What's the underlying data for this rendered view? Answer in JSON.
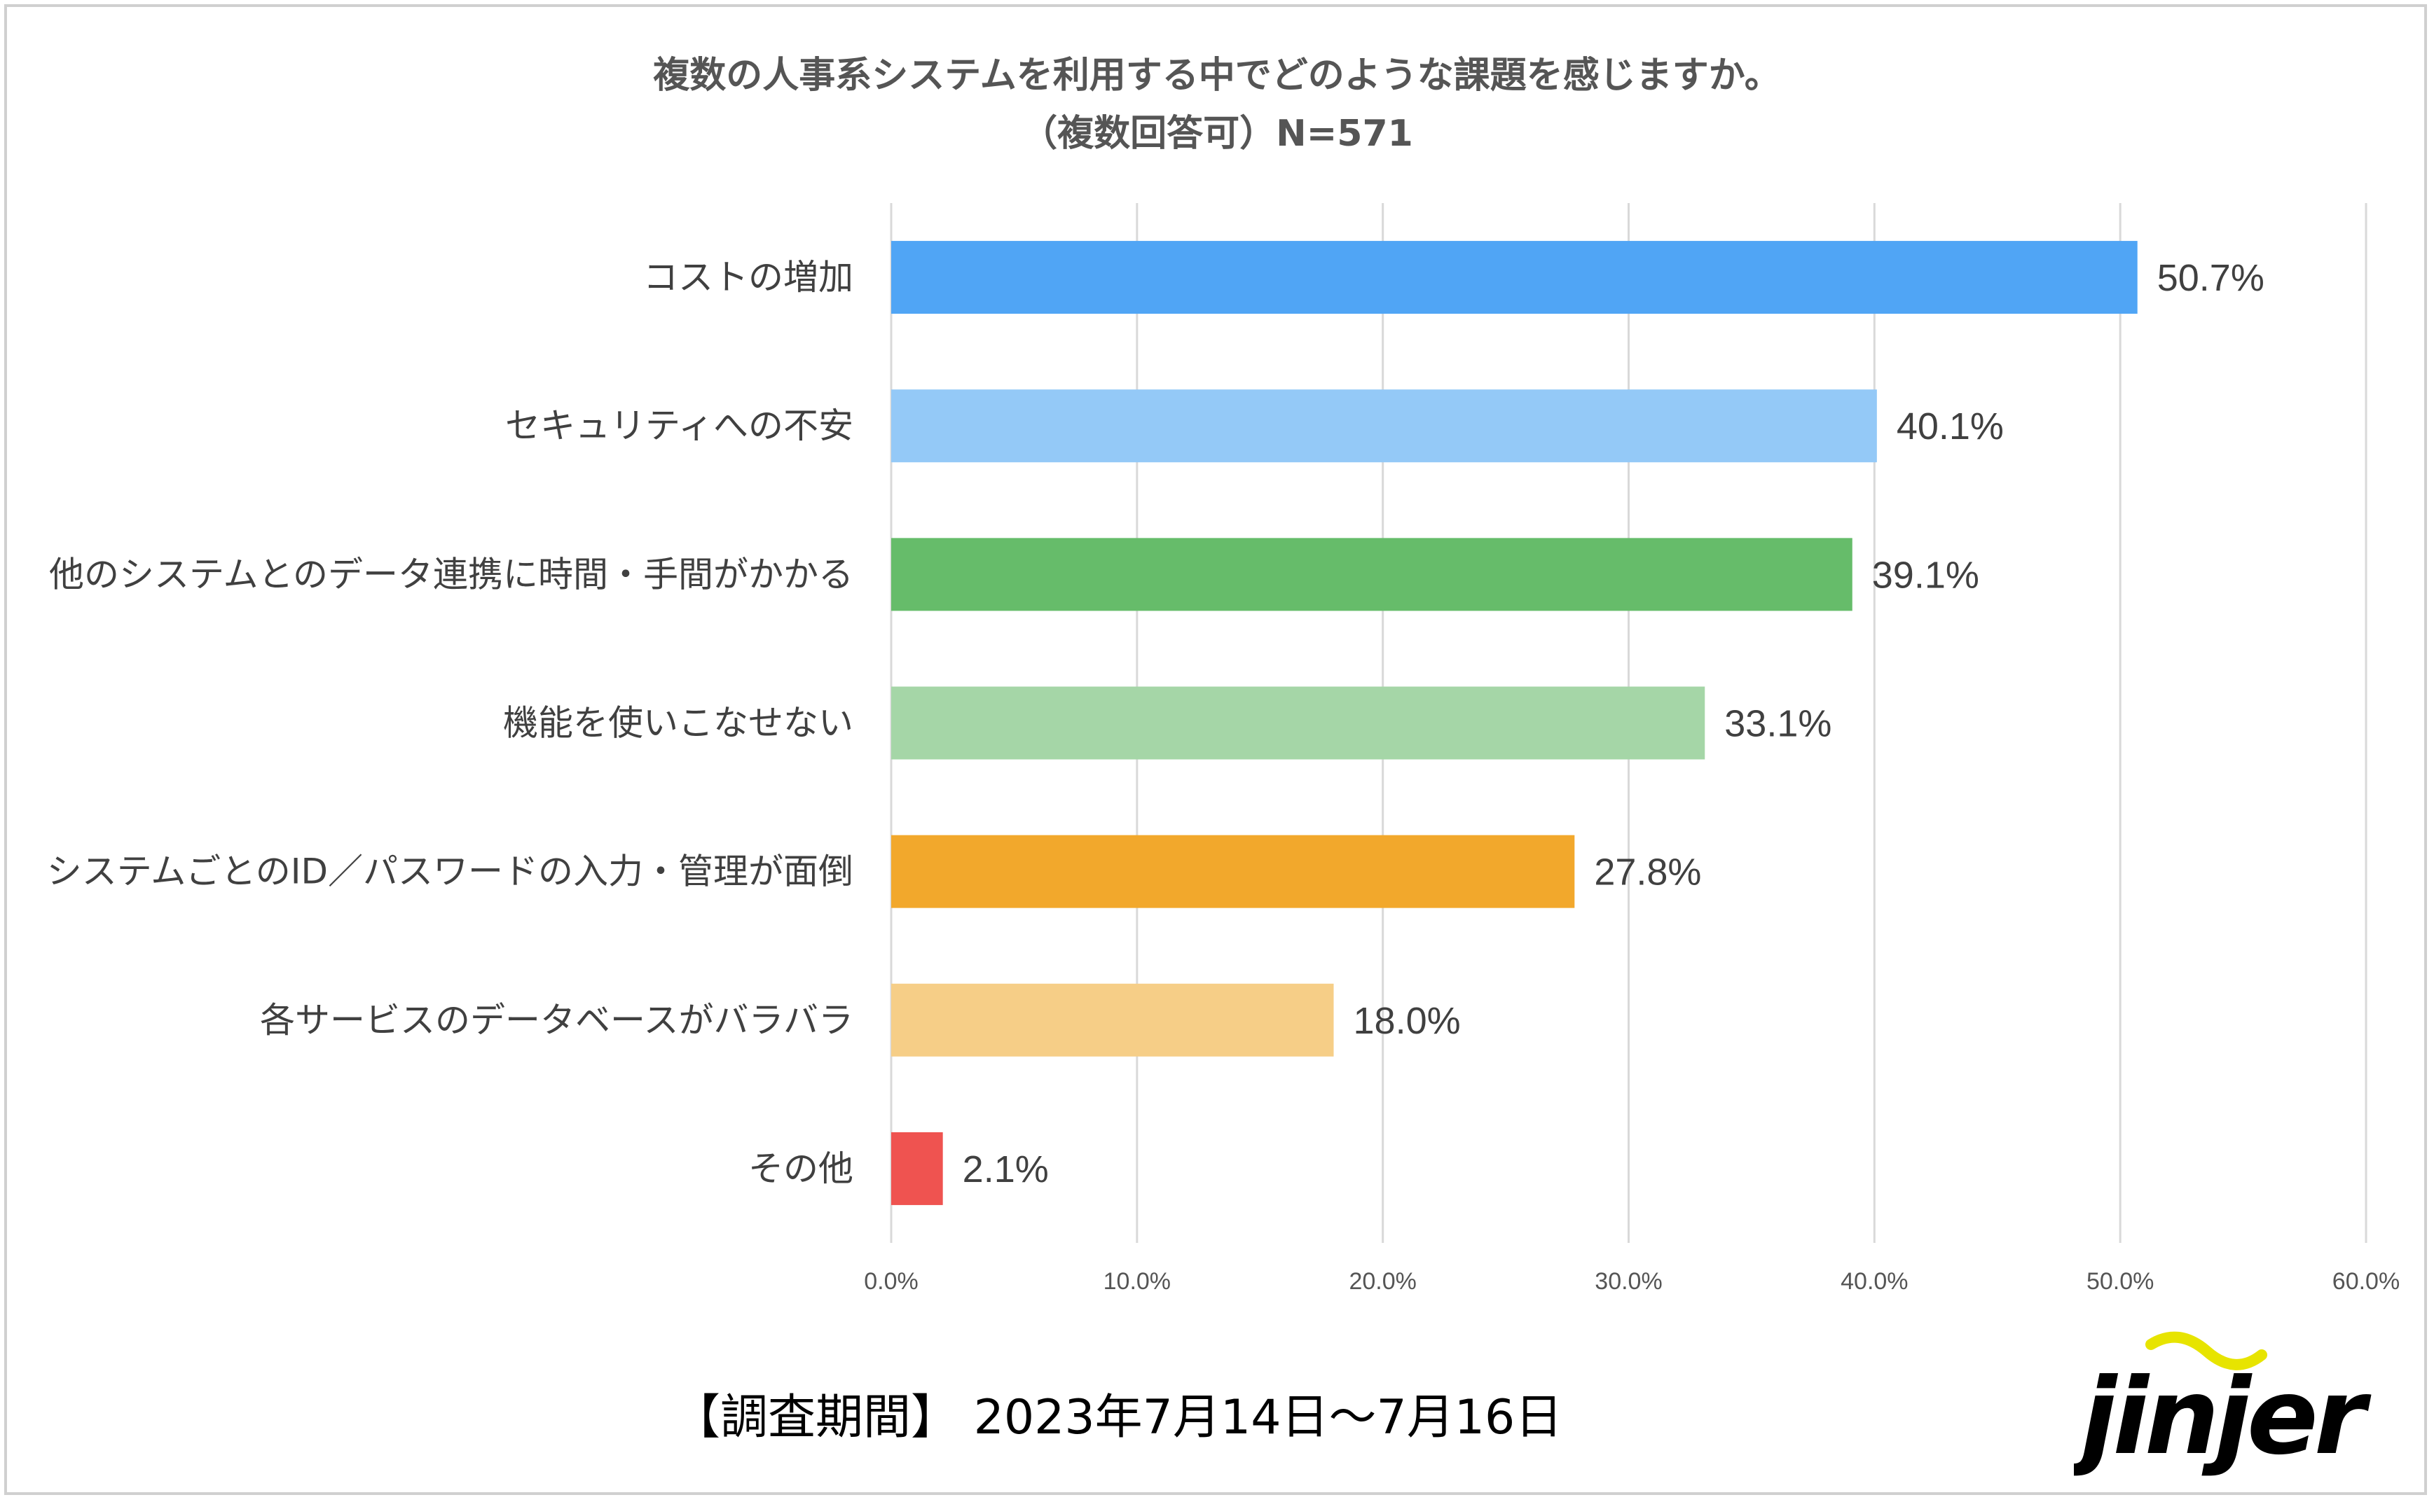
{
  "title": "複数の人事系システムを利用する中でどのような課題を感じますか。",
  "subtitle": "（複数回答可）N=571",
  "chart_data": {
    "type": "bar",
    "orientation": "horizontal",
    "title": "複数の人事系システムを利用する中でどのような課題を感じますか。",
    "subtitle": "（複数回答可）N=571",
    "categories": [
      "コストの増加",
      "セキュリティへの不安",
      "他のシステムとのデータ連携に時間・手間がかかる",
      "機能を使いこなせない",
      "システムごとのID／パスワードの入力・管理が面倒",
      "各サービスのデータベースがバラバラ",
      "その他"
    ],
    "values": [
      50.7,
      40.1,
      39.1,
      33.1,
      27.8,
      18.0,
      2.1
    ],
    "value_labels": [
      "50.7%",
      "40.1%",
      "39.1%",
      "33.1%",
      "27.8%",
      "18.0%",
      "2.1%"
    ],
    "colors": [
      "#50a5f5",
      "#94c9f7",
      "#66bc6a",
      "#a5d6a7",
      "#f2a82c",
      "#f6ce87",
      "#ef5350"
    ],
    "xlim": [
      0,
      60
    ],
    "xticks": [
      0,
      10,
      20,
      30,
      40,
      50,
      60
    ],
    "xtick_labels": [
      "0.0%",
      "10.0%",
      "20.0%",
      "30.0%",
      "40.0%",
      "50.0%",
      "60.0%"
    ],
    "grid": true,
    "legend": "none"
  },
  "footer": {
    "period": "【調査期間】 2023年7月14日～7月16日",
    "brand": "jinjer",
    "brand_color": "#000000",
    "brand_accent": "#e7e400"
  }
}
